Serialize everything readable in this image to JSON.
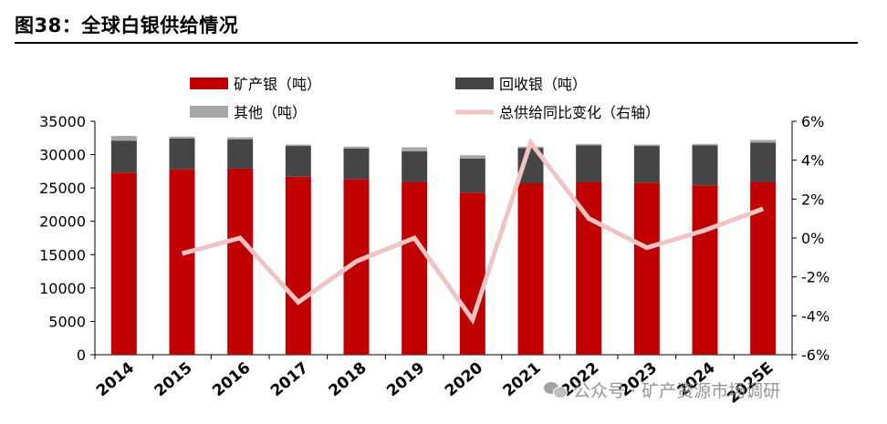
{
  "title": "图38：全球白银供给情况",
  "watermark": "公众号 · 矿产资源市场调研",
  "colors": {
    "mine": "#c00000",
    "recycle": "#454545",
    "other": "#a6a6a6",
    "growth": "#f0c4c4"
  },
  "chart_data": {
    "type": "bar",
    "stacked": true,
    "categories": [
      "2014",
      "2015",
      "2016",
      "2017",
      "2018",
      "2019",
      "2020",
      "2021",
      "2022",
      "2023",
      "2024",
      "2025E"
    ],
    "series": [
      {
        "name": "矿产银（吨）",
        "axis": "left",
        "values": [
          27300,
          27800,
          27900,
          26700,
          26300,
          25900,
          24300,
          25700,
          25900,
          25800,
          25400,
          25900
        ]
      },
      {
        "name": "回收银（吨）",
        "axis": "left",
        "values": [
          4800,
          4600,
          4400,
          4600,
          4600,
          4600,
          5100,
          5300,
          5500,
          5500,
          6000,
          5900
        ]
      },
      {
        "name": "其他（吨）",
        "axis": "left",
        "values": [
          700,
          300,
          300,
          200,
          300,
          600,
          500,
          200,
          200,
          200,
          200,
          400
        ]
      }
    ],
    "line": {
      "name": "总供给同比变化（右轴）",
      "axis": "right",
      "values": [
        null,
        -0.8,
        0.0,
        -3.3,
        -1.2,
        0.0,
        -4.2,
        4.9,
        1.0,
        -0.5,
        0.4,
        1.5
      ]
    },
    "yleft": {
      "min": 0,
      "max": 35000,
      "ticks": [
        "0",
        "5000",
        "10000",
        "15000",
        "20000",
        "25000",
        "30000",
        "35000"
      ]
    },
    "yright": {
      "min": -6,
      "max": 6,
      "ticks": [
        "-6%",
        "-4%",
        "-2%",
        "0%",
        "2%",
        "4%",
        "6%"
      ]
    }
  }
}
